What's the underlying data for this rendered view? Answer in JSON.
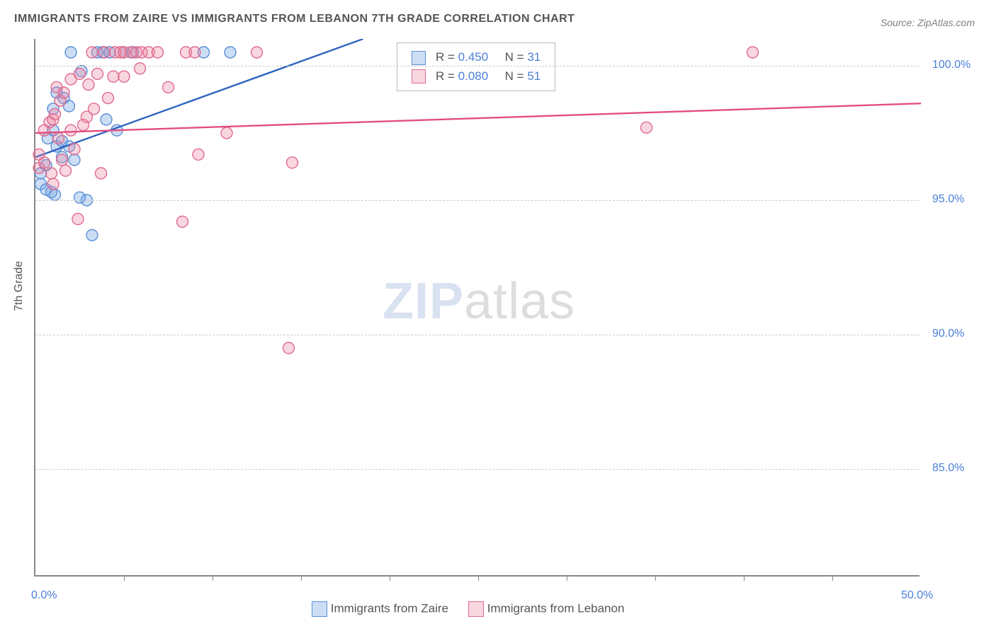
{
  "title": "IMMIGRANTS FROM ZAIRE VS IMMIGRANTS FROM LEBANON 7TH GRADE CORRELATION CHART",
  "source": "Source: ZipAtlas.com",
  "yaxis_label": "7th Grade",
  "watermark_a": "ZIP",
  "watermark_b": "atlas",
  "chart": {
    "type": "scatter",
    "xlim": [
      0,
      50
    ],
    "ylim": [
      81,
      101
    ],
    "x_ticks_minor_step": 5,
    "x_tick_labels": [
      {
        "v": 0,
        "label": "0.0%"
      },
      {
        "v": 50,
        "label": "50.0%"
      }
    ],
    "y_grid": [
      {
        "v": 100,
        "label": "100.0%"
      },
      {
        "v": 95,
        "label": "95.0%"
      },
      {
        "v": 90,
        "label": "90.0%"
      },
      {
        "v": 85,
        "label": "85.0%"
      }
    ],
    "background_color": "#ffffff",
    "grid_color": "#cccccc",
    "axis_color": "#888888",
    "marker_radius": 8,
    "marker_stroke_width": 1.4,
    "trend_line_width": 2.4,
    "series": [
      {
        "id": "zaire",
        "label": "Immigrants from Zaire",
        "fill": "rgba(110,160,225,0.35)",
        "stroke": "#5a8fd6",
        "line_color": "#2e63c0",
        "R": "0.450",
        "N": "31",
        "trend": {
          "x1": 0,
          "y1": 96.6,
          "x2": 18.5,
          "y2": 101
        },
        "points": [
          [
            0.3,
            96.0
          ],
          [
            0.3,
            95.6
          ],
          [
            0.6,
            96.3
          ],
          [
            0.6,
            95.4
          ],
          [
            0.7,
            97.3
          ],
          [
            0.9,
            95.3
          ],
          [
            1.0,
            98.4
          ],
          [
            1.0,
            97.6
          ],
          [
            1.1,
            95.2
          ],
          [
            1.2,
            97.0
          ],
          [
            1.2,
            99.0
          ],
          [
            1.5,
            96.6
          ],
          [
            1.5,
            97.2
          ],
          [
            1.6,
            98.8
          ],
          [
            1.9,
            98.5
          ],
          [
            1.9,
            97.0
          ],
          [
            2.0,
            100.5
          ],
          [
            2.2,
            96.5
          ],
          [
            2.5,
            95.1
          ],
          [
            2.6,
            99.8
          ],
          [
            2.9,
            95.0
          ],
          [
            3.2,
            93.7
          ],
          [
            3.5,
            100.5
          ],
          [
            3.8,
            100.5
          ],
          [
            4.0,
            98.0
          ],
          [
            4.2,
            100.5
          ],
          [
            4.6,
            97.6
          ],
          [
            5.0,
            100.5
          ],
          [
            5.5,
            100.5
          ],
          [
            9.5,
            100.5
          ],
          [
            11.0,
            100.5
          ]
        ]
      },
      {
        "id": "lebanon",
        "label": "Immigrants from Lebanon",
        "fill": "rgba(235,130,160,0.32)",
        "stroke": "#e06a90",
        "line_color": "#e24f7e",
        "R": "0.080",
        "N": "51",
        "trend": {
          "x1": 0,
          "y1": 97.5,
          "x2": 50,
          "y2": 98.6
        },
        "points": [
          [
            0.2,
            96.2
          ],
          [
            0.2,
            96.7
          ],
          [
            0.5,
            97.6
          ],
          [
            0.5,
            96.4
          ],
          [
            0.8,
            97.9
          ],
          [
            0.9,
            96.0
          ],
          [
            1.0,
            98.0
          ],
          [
            1.0,
            95.6
          ],
          [
            1.2,
            99.2
          ],
          [
            1.3,
            97.3
          ],
          [
            1.4,
            98.7
          ],
          [
            1.5,
            96.5
          ],
          [
            1.6,
            99.0
          ],
          [
            1.7,
            96.1
          ],
          [
            2.0,
            99.5
          ],
          [
            2.0,
            97.6
          ],
          [
            2.2,
            96.9
          ],
          [
            2.4,
            94.3
          ],
          [
            2.5,
            99.7
          ],
          [
            2.7,
            97.8
          ],
          [
            2.9,
            98.1
          ],
          [
            3.0,
            99.3
          ],
          [
            3.2,
            100.5
          ],
          [
            3.3,
            98.4
          ],
          [
            3.5,
            99.7
          ],
          [
            3.7,
            96.0
          ],
          [
            3.9,
            100.5
          ],
          [
            4.1,
            98.8
          ],
          [
            4.4,
            99.6
          ],
          [
            4.5,
            100.5
          ],
          [
            4.8,
            100.5
          ],
          [
            5.0,
            99.6
          ],
          [
            5.0,
            100.5
          ],
          [
            5.4,
            100.5
          ],
          [
            5.7,
            100.5
          ],
          [
            5.9,
            99.9
          ],
          [
            6.0,
            100.5
          ],
          [
            6.4,
            100.5
          ],
          [
            6.9,
            100.5
          ],
          [
            7.5,
            99.2
          ],
          [
            8.3,
            94.2
          ],
          [
            8.5,
            100.5
          ],
          [
            9.0,
            100.5
          ],
          [
            9.2,
            96.7
          ],
          [
            10.8,
            97.5
          ],
          [
            12.5,
            100.5
          ],
          [
            14.3,
            89.5
          ],
          [
            14.5,
            96.4
          ],
          [
            34.5,
            97.7
          ],
          [
            40.5,
            100.5
          ],
          [
            1.1,
            98.2
          ]
        ]
      }
    ]
  },
  "legend_top": {
    "r_label": "R =",
    "n_label": "N ="
  },
  "colors": {
    "tick_label": "#4a7fd8",
    "title": "#555555"
  }
}
